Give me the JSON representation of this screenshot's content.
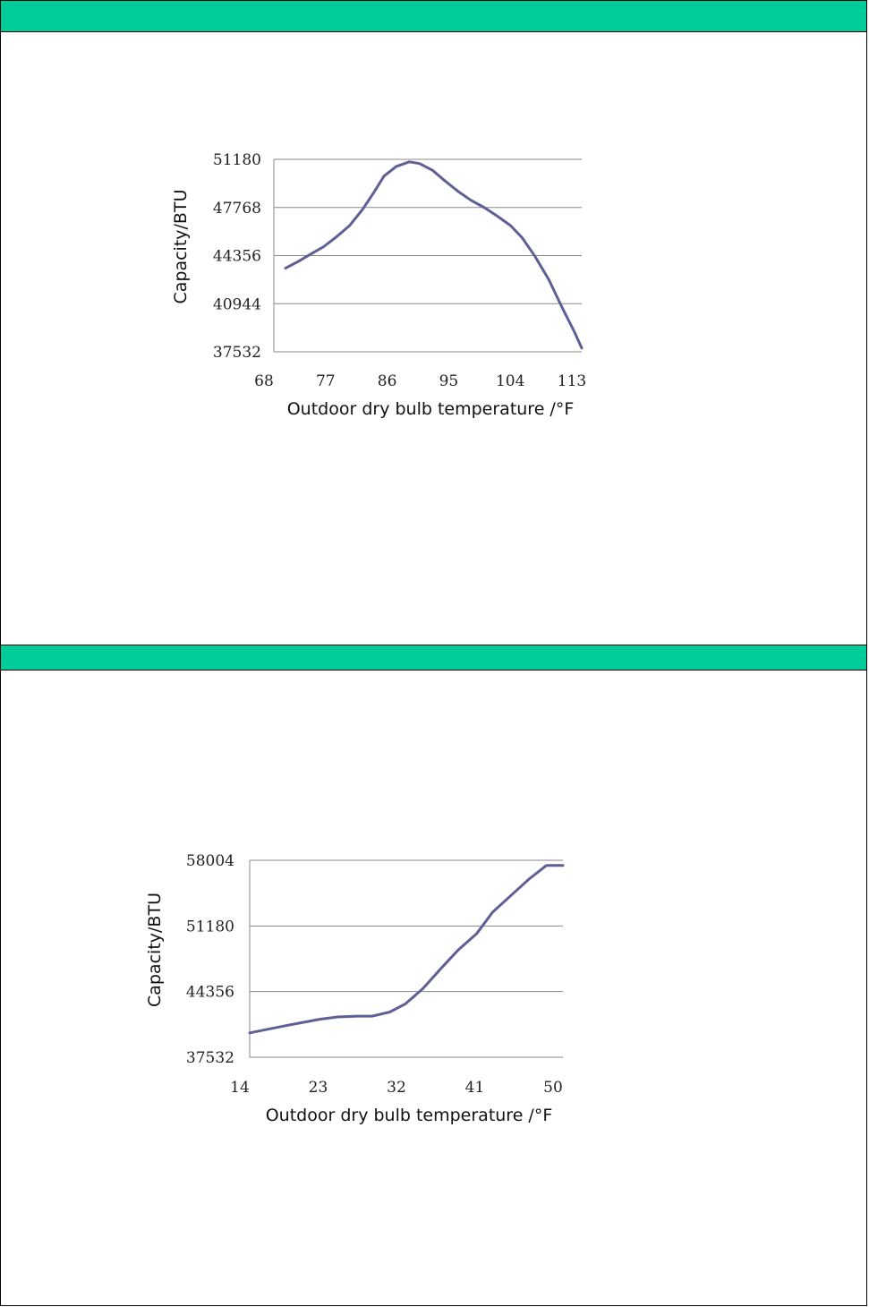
{
  "colors": {
    "header": "#00CC99",
    "line": "#5F5F96",
    "grid": "#888888"
  },
  "chart_data": [
    {
      "type": "line",
      "title": "",
      "xlabel": "Outdoor dry bulb temperature /°F",
      "ylabel": "Capacity/BTU",
      "xlim": [
        68,
        113
      ],
      "ylim": [
        37532,
        51180
      ],
      "x_ticks": [
        "68",
        "77",
        "86",
        "95",
        "104",
        "113"
      ],
      "y_ticks": [
        "51180",
        "47768",
        "44356",
        "40944",
        "37532"
      ],
      "grid": true,
      "series": [
        {
          "x": [
            69.7,
            71.6,
            73.6,
            75.3,
            77.2,
            79.1,
            81.0,
            82.6,
            84.1,
            85.9,
            87.8,
            89.3,
            91.2,
            92.9,
            94.9,
            96.8,
            98.8,
            100.7,
            102.6,
            104.3,
            106.2,
            108.2,
            110.1,
            111.9,
            113.0
          ],
          "y": [
            43460,
            43950,
            44520,
            44990,
            45700,
            46500,
            47650,
            48820,
            49990,
            50680,
            51000,
            50880,
            50400,
            49700,
            48920,
            48280,
            47750,
            47140,
            46480,
            45620,
            44280,
            42640,
            40710,
            38970,
            37800
          ]
        }
      ]
    },
    {
      "type": "line",
      "title": "",
      "xlabel": "Outdoor dry bulb temperature /°F",
      "ylabel": "Capacity/BTU",
      "xlim": [
        14,
        50
      ],
      "ylim": [
        37532,
        58004
      ],
      "x_ticks": [
        "14",
        "23",
        "32",
        "41",
        "50"
      ],
      "y_ticks": [
        "58004",
        "51180",
        "44356",
        "37532"
      ],
      "grid": true,
      "series": [
        {
          "x": [
            14.0,
            16.1,
            18.1,
            20.1,
            22.1,
            24.1,
            26.3,
            28.1,
            30.1,
            31.9,
            33.9,
            35.9,
            37.9,
            40.1,
            41.9,
            44.1,
            46.1,
            48.1,
            50.0
          ],
          "y": [
            40060,
            40440,
            40810,
            41150,
            41490,
            41720,
            41800,
            41800,
            42230,
            43080,
            44660,
            46680,
            48620,
            50400,
            52600,
            54400,
            56050,
            57460,
            57460
          ]
        }
      ]
    }
  ]
}
